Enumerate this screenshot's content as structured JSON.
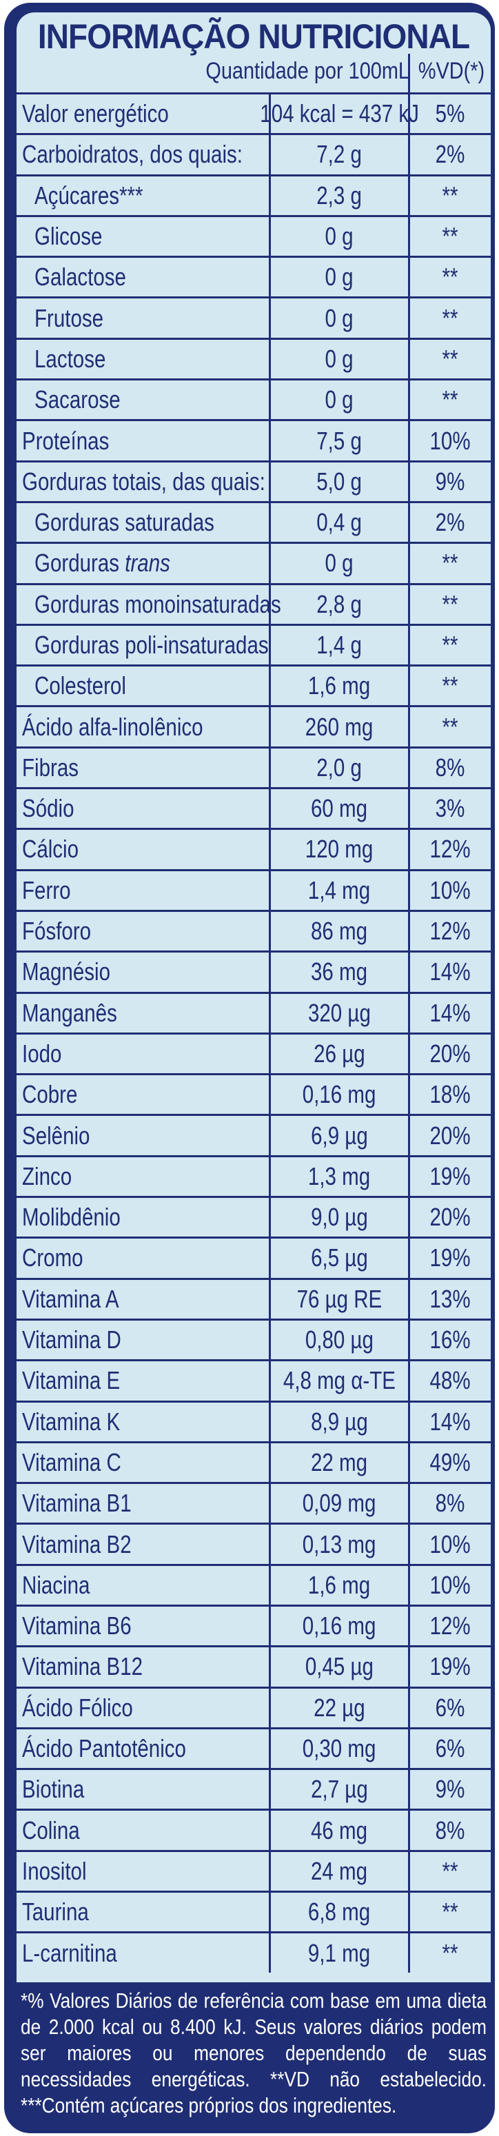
{
  "title": "INFORMAÇÃO NUTRICIONAL",
  "header": {
    "quantity": "Quantidade por 100mL",
    "vd": "%VD(*)"
  },
  "rows": [
    {
      "name": "Valor energético",
      "qty": "104 kcal = 437 kJ",
      "vd": "5%",
      "sub": false
    },
    {
      "name": "Carboidratos, dos quais:",
      "qty": "7,2 g",
      "vd": "2%",
      "sub": false
    },
    {
      "name": "Açúcares***",
      "qty": "2,3 g",
      "vd": "**",
      "sub": true
    },
    {
      "name": "Glicose",
      "qty": "0 g",
      "vd": "**",
      "sub": true
    },
    {
      "name": "Galactose",
      "qty": "0 g",
      "vd": "**",
      "sub": true
    },
    {
      "name": "Frutose",
      "qty": "0 g",
      "vd": "**",
      "sub": true
    },
    {
      "name": "Lactose",
      "qty": "0 g",
      "vd": "**",
      "sub": true
    },
    {
      "name": "Sacarose",
      "qty": "0 g",
      "vd": "**",
      "sub": true
    },
    {
      "name": "Proteínas",
      "qty": "7,5 g",
      "vd": "10%",
      "sub": false
    },
    {
      "name": "Gorduras totais, das quais:",
      "qty": "5,0 g",
      "vd": "9%",
      "sub": false
    },
    {
      "name": "Gorduras saturadas",
      "qty": "0,4 g",
      "vd": "2%",
      "sub": true
    },
    {
      "name": "Gorduras trans",
      "qty": "0 g",
      "vd": "**",
      "sub": true
    },
    {
      "name": "Gorduras monoinsaturadas",
      "qty": "2,8 g",
      "vd": "**",
      "sub": true
    },
    {
      "name": "Gorduras poli-insaturadas",
      "qty": "1,4 g",
      "vd": "**",
      "sub": true
    },
    {
      "name": "Colesterol",
      "qty": "1,6 mg",
      "vd": "**",
      "sub": true
    },
    {
      "name": "Ácido alfa-linolênico",
      "qty": "260 mg",
      "vd": "**",
      "sub": false
    },
    {
      "name": "Fibras",
      "qty": "2,0 g",
      "vd": "8%",
      "sub": false
    },
    {
      "name": "Sódio",
      "qty": "60 mg",
      "vd": "3%",
      "sub": false
    },
    {
      "name": "Cálcio",
      "qty": "120 mg",
      "vd": "12%",
      "sub": false
    },
    {
      "name": "Ferro",
      "qty": "1,4 mg",
      "vd": "10%",
      "sub": false
    },
    {
      "name": "Fósforo",
      "qty": "86 mg",
      "vd": "12%",
      "sub": false
    },
    {
      "name": "Magnésio",
      "qty": "36 mg",
      "vd": "14%",
      "sub": false
    },
    {
      "name": "Manganês",
      "qty": "320 µg",
      "vd": "14%",
      "sub": false
    },
    {
      "name": "Iodo",
      "qty": "26 µg",
      "vd": "20%",
      "sub": false
    },
    {
      "name": "Cobre",
      "qty": "0,16 mg",
      "vd": "18%",
      "sub": false
    },
    {
      "name": "Selênio",
      "qty": "6,9 µg",
      "vd": "20%",
      "sub": false
    },
    {
      "name": "Zinco",
      "qty": "1,3 mg",
      "vd": "19%",
      "sub": false
    },
    {
      "name": "Molibdênio",
      "qty": "9,0 µg",
      "vd": "20%",
      "sub": false
    },
    {
      "name": "Cromo",
      "qty": "6,5 µg",
      "vd": "19%",
      "sub": false
    },
    {
      "name": "Vitamina A",
      "qty": "76 µg RE",
      "vd": "13%",
      "sub": false
    },
    {
      "name": "Vitamina D",
      "qty": "0,80 µg",
      "vd": "16%",
      "sub": false
    },
    {
      "name": "Vitamina E",
      "qty": "4,8 mg α-TE",
      "vd": "48%",
      "sub": false
    },
    {
      "name": "Vitamina K",
      "qty": "8,9 µg",
      "vd": "14%",
      "sub": false
    },
    {
      "name": "Vitamina C",
      "qty": "22 mg",
      "vd": "49%",
      "sub": false
    },
    {
      "name": "Vitamina B1",
      "qty": "0,09 mg",
      "vd": "8%",
      "sub": false
    },
    {
      "name": "Vitamina B2",
      "qty": "0,13 mg",
      "vd": "10%",
      "sub": false
    },
    {
      "name": "Niacina",
      "qty": "1,6 mg",
      "vd": "10%",
      "sub": false
    },
    {
      "name": "Vitamina B6",
      "qty": "0,16 mg",
      "vd": "12%",
      "sub": false
    },
    {
      "name": "Vitamina B12",
      "qty": "0,45 µg",
      "vd": "19%",
      "sub": false
    },
    {
      "name": "Ácido Fólico",
      "qty": "22 µg",
      "vd": "6%",
      "sub": false
    },
    {
      "name": "Ácido Pantotênico",
      "qty": "0,30 mg",
      "vd": "6%",
      "sub": false
    },
    {
      "name": "Biotina",
      "qty": "2,7 µg",
      "vd": "9%",
      "sub": false
    },
    {
      "name": "Colina",
      "qty": "46 mg",
      "vd": "8%",
      "sub": false
    },
    {
      "name": "Inositol",
      "qty": "24 mg",
      "vd": "**",
      "sub": false
    },
    {
      "name": "Taurina",
      "qty": "6,8 mg",
      "vd": "**",
      "sub": false
    },
    {
      "name": "L-carnitina",
      "qty": "9,1 mg",
      "vd": "**",
      "sub": false
    }
  ],
  "footnote": "*% Valores Diários de referência com base em uma dieta de 2.000 kcal ou 8.400 kJ. Seus valores diários podem ser maiores ou menores dependendo de suas necessidades energéticas. **VD não estabelecido. ***Contém açúcares próprios dos ingredientes.",
  "colors": {
    "navy": "#1f2e74",
    "panel": "#d3e8f1"
  }
}
